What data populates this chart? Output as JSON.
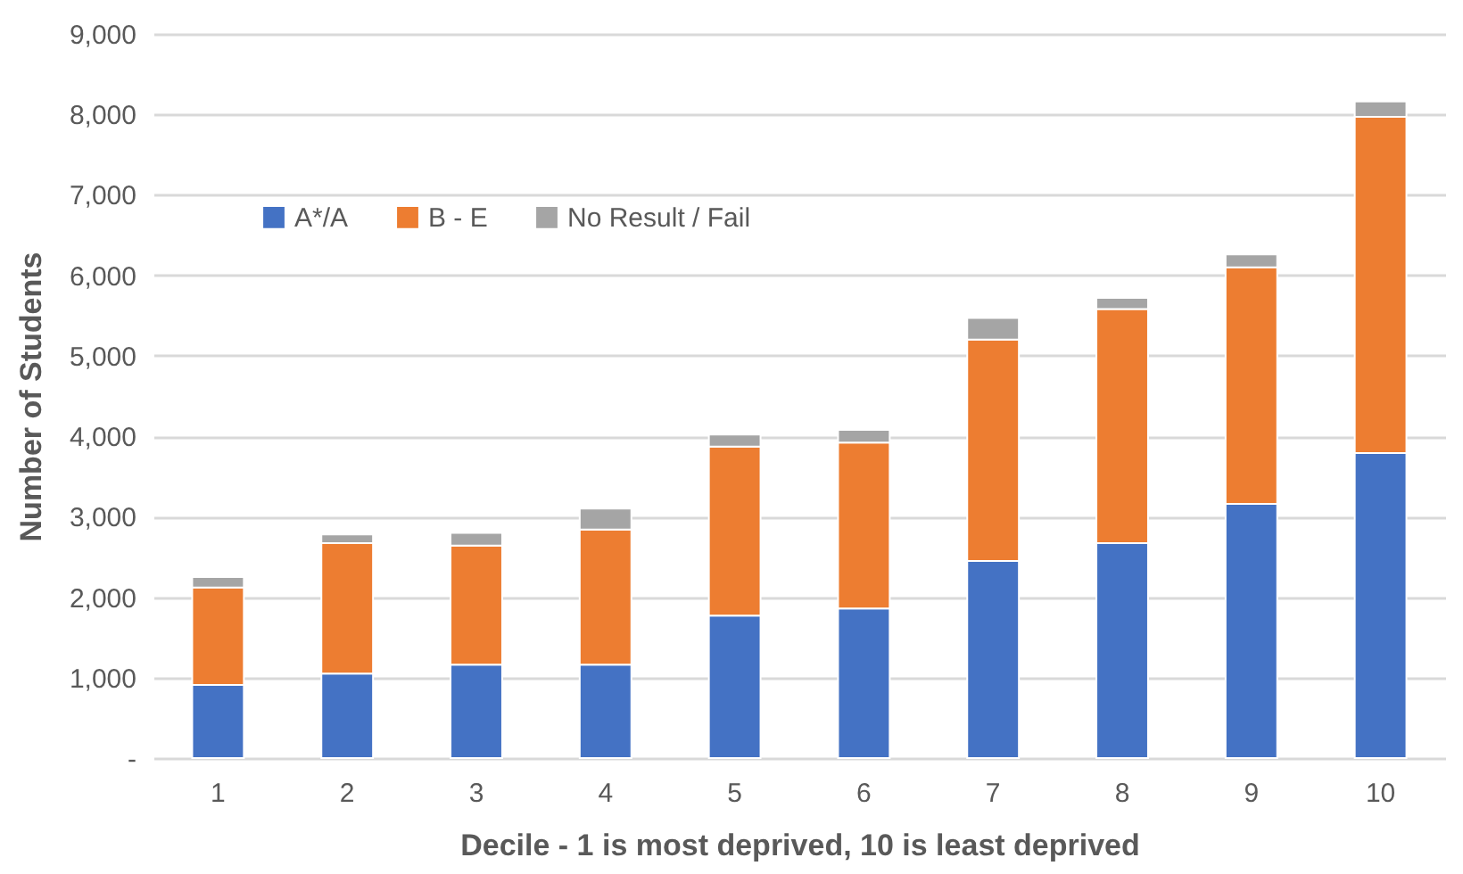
{
  "chart_data": {
    "type": "bar",
    "stacked": true,
    "xlabel": "Decile - 1 is most deprived, 10 is least deprived",
    "ylabel": "Number of Students",
    "categories": [
      "1",
      "2",
      "3",
      "4",
      "5",
      "6",
      "7",
      "8",
      "9",
      "10"
    ],
    "series": [
      {
        "name": "A*/A",
        "color": "#4472c4",
        "values": [
          910,
          1050,
          1160,
          1160,
          1770,
          1860,
          2450,
          2670,
          3160,
          3790
        ]
      },
      {
        "name": "B - E",
        "color": "#ed7d31",
        "values": [
          1210,
          1620,
          1480,
          1680,
          2100,
          2060,
          2750,
          2910,
          2940,
          4180
        ]
      },
      {
        "name": "No Result / Fail",
        "color": "#a5a5a5",
        "values": [
          130,
          110,
          160,
          260,
          150,
          160,
          270,
          140,
          160,
          190
        ]
      }
    ],
    "ylim": [
      0,
      9000
    ],
    "yticks": [
      {
        "value": 0,
        "label": "-"
      },
      {
        "value": 1000,
        "label": "1,000"
      },
      {
        "value": 2000,
        "label": "2,000"
      },
      {
        "value": 3000,
        "label": "3,000"
      },
      {
        "value": 4000,
        "label": "4,000"
      },
      {
        "value": 5000,
        "label": "5,000"
      },
      {
        "value": 6000,
        "label": "6,000"
      },
      {
        "value": 7000,
        "label": "7,000"
      },
      {
        "value": 8000,
        "label": "8,000"
      },
      {
        "value": 9000,
        "label": "9,000"
      }
    ],
    "grid": "y",
    "legend": "top left"
  }
}
